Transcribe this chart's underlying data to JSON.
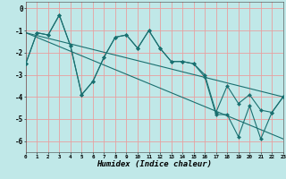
{
  "background_color": "#c0e8e8",
  "grid_color": "#e8a0a0",
  "line_color": "#1a7070",
  "xlim": [
    0,
    23
  ],
  "ylim": [
    -6.5,
    0.3
  ],
  "yticks": [
    0,
    -1,
    -2,
    -3,
    -4,
    -5,
    -6
  ],
  "xticks": [
    0,
    1,
    2,
    3,
    4,
    5,
    6,
    7,
    8,
    9,
    10,
    11,
    12,
    13,
    14,
    15,
    16,
    17,
    18,
    19,
    20,
    21,
    22,
    23
  ],
  "xlabel": "Humidex (Indice chaleur)",
  "line1_x": [
    0,
    1,
    2,
    3,
    4,
    5,
    6,
    7,
    8,
    9,
    10,
    11,
    12,
    13,
    14,
    15,
    16,
    17,
    18,
    19,
    20,
    21,
    22,
    23
  ],
  "line1_y": [
    -2.5,
    -1.1,
    -1.2,
    -0.3,
    -1.7,
    -3.9,
    -3.3,
    -2.2,
    -1.3,
    -1.2,
    -1.8,
    -1.0,
    -1.8,
    -2.4,
    -2.4,
    -2.5,
    -3.0,
    -4.7,
    -3.5,
    -4.3,
    -3.9,
    -4.6,
    -4.7,
    -4.0
  ],
  "line2_x": [
    0,
    1,
    2,
    3,
    4,
    5,
    6,
    7,
    8,
    9,
    10,
    11,
    12,
    13,
    14,
    15,
    16,
    17,
    18,
    19,
    20,
    21,
    22,
    23
  ],
  "line2_y": [
    -2.5,
    -1.1,
    -1.2,
    -0.3,
    -1.7,
    -3.9,
    -3.3,
    -2.2,
    -1.3,
    -1.2,
    -1.8,
    -1.0,
    -1.8,
    -2.4,
    -2.4,
    -2.5,
    -3.1,
    -4.8,
    -4.8,
    -5.8,
    -4.4,
    -5.9,
    -4.7,
    -4.0
  ],
  "trend1_x": [
    0,
    23
  ],
  "trend1_y": [
    -1.1,
    -4.0
  ],
  "trend2_x": [
    0,
    23
  ],
  "trend2_y": [
    -1.1,
    -5.9
  ]
}
